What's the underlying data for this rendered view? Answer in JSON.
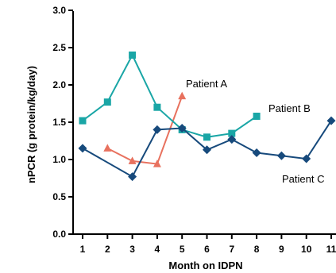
{
  "chart_data": {
    "type": "line",
    "xlabel": "Month on IDPN",
    "ylabel": "nPCR (g protein/kg/day)",
    "x_ticks": [
      1,
      2,
      3,
      4,
      5,
      6,
      7,
      8,
      9,
      10,
      11
    ],
    "y_ticks": [
      "0.0",
      "0.5",
      "1.0",
      "1.5",
      "2.0",
      "2.5",
      "3.0"
    ],
    "ylim": [
      0,
      3.0
    ],
    "xlim": [
      0.6,
      11
    ],
    "grid": false,
    "series": [
      {
        "name": "Patient A",
        "color": "#e8715e",
        "marker": "triangle",
        "x": [
          2,
          3,
          4,
          5
        ],
        "y": [
          1.15,
          0.98,
          0.94,
          1.85
        ]
      },
      {
        "name": "Patient B",
        "color": "#1aa6a6",
        "marker": "square",
        "x": [
          1,
          2,
          3,
          4,
          5,
          6,
          7,
          8
        ],
        "y": [
          1.52,
          1.77,
          2.4,
          1.7,
          1.4,
          1.3,
          1.35,
          1.58
        ]
      },
      {
        "name": "Patient C",
        "color": "#174a7c",
        "marker": "diamond",
        "x": [
          1,
          3,
          4,
          5,
          6,
          7,
          8,
          9,
          10,
          11
        ],
        "y": [
          1.15,
          0.77,
          1.4,
          1.42,
          1.13,
          1.27,
          1.09,
          1.05,
          1.01,
          1.52
        ]
      }
    ],
    "annotations": [
      "Patient A",
      "Patient B",
      "Patient C"
    ]
  }
}
